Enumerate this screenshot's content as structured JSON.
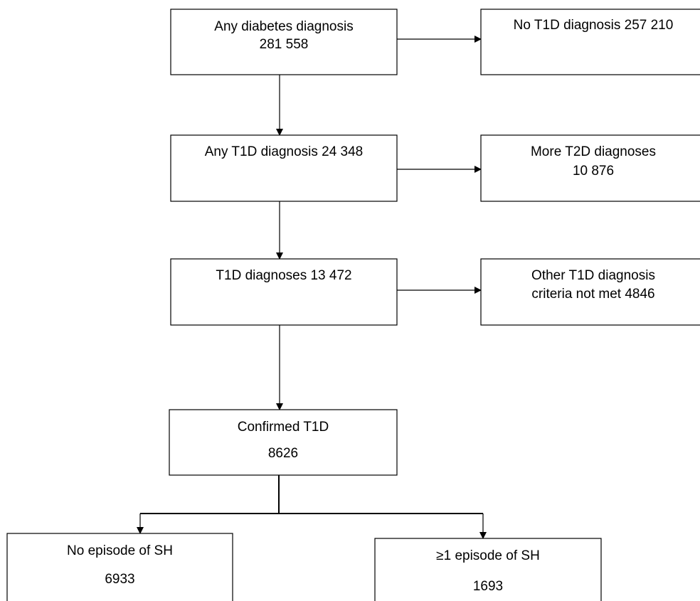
{
  "nodes": [
    {
      "lines": [
        "Any diabetes diagnosis",
        "281 558"
      ]
    },
    {
      "lines": [
        "No T1D diagnosis 257 210"
      ]
    },
    {
      "lines": [
        "Any T1D diagnosis 24 348"
      ]
    },
    {
      "lines": [
        "More T2D diagnoses",
        "10 876"
      ]
    },
    {
      "lines": [
        "T1D diagnoses 13 472"
      ]
    },
    {
      "lines": [
        "Other T1D diagnosis",
        "criteria not met 4846"
      ]
    },
    {
      "lines": [
        "Confirmed T1D",
        "8626"
      ]
    },
    {
      "lines": [
        "No episode of SH",
        "6933"
      ]
    },
    {
      "lines": [
        "≥1 episode of SH",
        "1693"
      ]
    }
  ]
}
